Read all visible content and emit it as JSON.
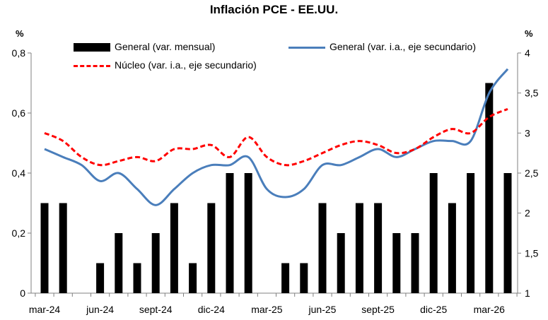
{
  "chart_data": {
    "type": "bar",
    "title": "Inflación PCE - EE.UU.",
    "ylabel_left": "%",
    "ylabel_right": "%",
    "ylim_left": [
      0,
      0.8
    ],
    "ylim_right": [
      1,
      4
    ],
    "yticks_left": [
      "0",
      "0,2",
      "0,4",
      "0,6",
      "0,8"
    ],
    "yticks_right": [
      "1",
      "1,5",
      "2",
      "2,5",
      "3",
      "3,5",
      "4"
    ],
    "x_tick_labels": [
      "mar-24",
      "jun-24",
      "sept-24",
      "dic-24",
      "mar-25",
      "jun-25",
      "sept-25",
      "dic-25",
      "mar-26"
    ],
    "x_tick_months": [
      0,
      3,
      6,
      9,
      12,
      15,
      18,
      21,
      24
    ],
    "grid": false,
    "legend_position": "top",
    "series": [
      {
        "name": "General (var. mensual)",
        "kind": "bar",
        "axis": "left",
        "color": "#000000",
        "months": [
          0,
          1,
          2,
          3,
          4,
          5,
          6,
          7,
          8,
          9,
          10,
          11,
          12,
          13,
          14,
          15,
          16,
          17,
          18,
          19,
          20,
          21,
          22,
          23,
          24,
          25
        ],
        "values": [
          0.3,
          0.3,
          0,
          0.1,
          0.2,
          0.1,
          0.2,
          0.3,
          0.1,
          0.3,
          0.4,
          0.4,
          0,
          0.1,
          0.1,
          0.3,
          0.2,
          0.3,
          0.3,
          0.2,
          0.2,
          0.4,
          0.3,
          0.4,
          0.7,
          0.4
        ]
      },
      {
        "name": "General (var. i.a., eje secundario)",
        "kind": "line",
        "axis": "right",
        "color": "#4a7ebb",
        "months": [
          0,
          1,
          2,
          3,
          4,
          5,
          6,
          7,
          8,
          9,
          10,
          11,
          12,
          13,
          14,
          15,
          16,
          17,
          18,
          19,
          20,
          21,
          22,
          23,
          24,
          25
        ],
        "values": [
          2.8,
          2.7,
          2.6,
          2.4,
          2.5,
          2.3,
          2.1,
          2.3,
          2.5,
          2.6,
          2.6,
          2.7,
          2.3,
          2.2,
          2.3,
          2.6,
          2.6,
          2.7,
          2.8,
          2.7,
          2.8,
          2.9,
          2.9,
          2.9,
          3.5,
          3.8
        ]
      },
      {
        "name": "Núcleo (var. i.a., eje secundario)",
        "kind": "dashed-line",
        "axis": "right",
        "color": "#ff0000",
        "months": [
          0,
          1,
          2,
          3,
          4,
          5,
          6,
          7,
          8,
          9,
          10,
          11,
          12,
          13,
          14,
          15,
          16,
          17,
          18,
          19,
          20,
          21,
          22,
          23,
          24,
          25
        ],
        "values": [
          3.0,
          2.9,
          2.7,
          2.6,
          2.65,
          2.7,
          2.65,
          2.8,
          2.8,
          2.85,
          2.7,
          2.95,
          2.7,
          2.6,
          2.65,
          2.75,
          2.85,
          2.9,
          2.85,
          2.75,
          2.8,
          2.95,
          3.05,
          3.0,
          3.2,
          3.3
        ]
      }
    ]
  }
}
